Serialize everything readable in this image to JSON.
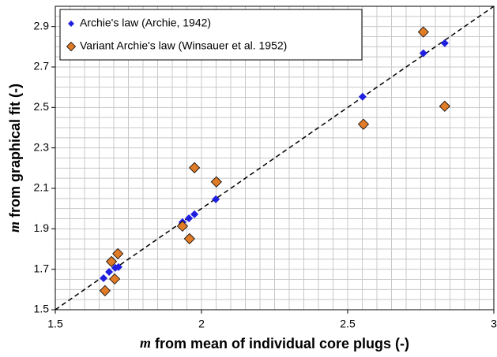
{
  "chart_data": {
    "type": "scatter",
    "x_label_var": "m",
    "x_label": "from mean of individual core plugs (-)",
    "y_label_var": "m",
    "y_label": "from graphical fit (-)",
    "xlim": [
      1.5,
      3
    ],
    "xticks": [
      1.5,
      2,
      2.5,
      3
    ],
    "ylim": [
      1.5,
      3.0
    ],
    "yticks": [
      1.5,
      1.7,
      1.9,
      2.1,
      2.3,
      2.5,
      2.7,
      2.9
    ],
    "grid": true,
    "grid_step": 0.05,
    "legend": "upper left",
    "series": [
      {
        "name": "Archie's law (Archie, 1942)",
        "color": "#1f1fe0",
        "x": [
          1.665,
          1.684,
          1.705,
          1.716,
          1.935,
          1.957,
          1.976,
          2.049,
          2.551,
          2.759,
          2.832
        ],
        "values": [
          1.656,
          1.687,
          1.707,
          1.711,
          1.933,
          1.952,
          1.972,
          2.046,
          2.553,
          2.768,
          2.818
        ]
      },
      {
        "name": "Variant Archie's law (Winsauer et al. 1952)",
        "color": "#e07b28",
        "x": [
          1.67,
          1.692,
          1.703,
          1.714,
          1.935,
          1.959,
          1.976,
          2.051,
          2.554,
          2.759,
          2.832
        ],
        "values": [
          1.594,
          1.738,
          1.652,
          1.777,
          1.913,
          1.851,
          2.202,
          2.132,
          2.417,
          2.873,
          2.506
        ]
      }
    ]
  }
}
